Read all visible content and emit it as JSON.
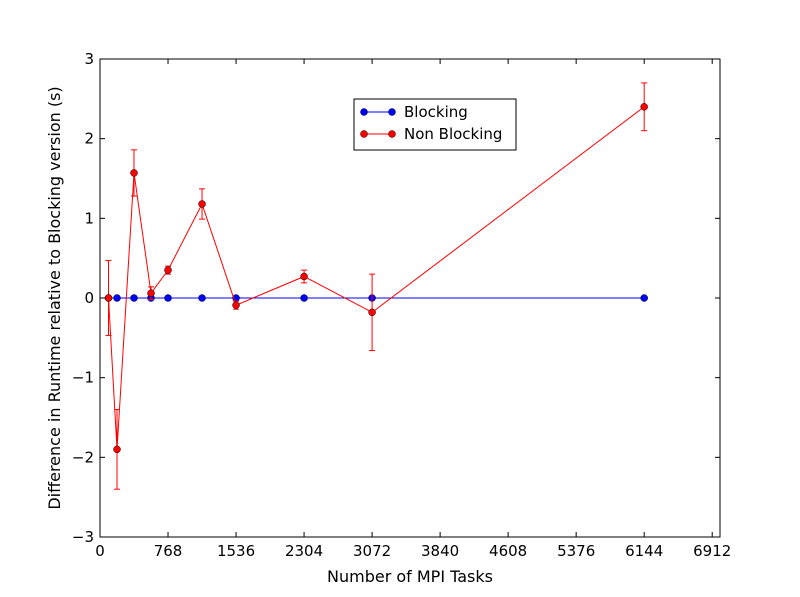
{
  "chart_data": {
    "type": "line",
    "title": "",
    "xlabel": "Number of MPI Tasks",
    "ylabel": "Difference in Runtime relative to Blocking version (s)",
    "xlim": [
      0,
      7000
    ],
    "ylim": [
      -3,
      3
    ],
    "xticks": [
      0,
      768,
      1536,
      2304,
      3072,
      3840,
      4608,
      5376,
      6144,
      6912
    ],
    "xtick_labels": [
      "0",
      "768",
      "1536",
      "2304",
      "3072",
      "3840",
      "4608",
      "5376",
      "6144",
      "6912"
    ],
    "yticks": [
      -3,
      -2,
      -1,
      0,
      1,
      2,
      3
    ],
    "ytick_labels": [
      "−3",
      "−2",
      "−1",
      "0",
      "1",
      "2",
      "3"
    ],
    "grid": false,
    "legend_position": "top-center",
    "series": [
      {
        "name": "Blocking",
        "color": "#0000ff",
        "x": [
          96,
          192,
          384,
          576,
          768,
          1152,
          1536,
          2304,
          3072,
          6144
        ],
        "y": [
          0,
          0,
          0,
          0,
          0,
          0,
          0,
          0,
          0,
          0
        ],
        "yerr": null
      },
      {
        "name": "Non Blocking",
        "color": "#ff0000",
        "x": [
          96,
          192,
          384,
          576,
          768,
          1152,
          1536,
          2304,
          3072,
          6144
        ],
        "y": [
          0.0,
          -1.9,
          1.57,
          0.06,
          0.35,
          1.18,
          -0.09,
          0.27,
          -0.18,
          2.4
        ],
        "yerr": [
          0.47,
          0.5,
          0.29,
          0.08,
          0.05,
          0.19,
          0.05,
          0.08,
          0.48,
          0.3
        ]
      }
    ]
  }
}
